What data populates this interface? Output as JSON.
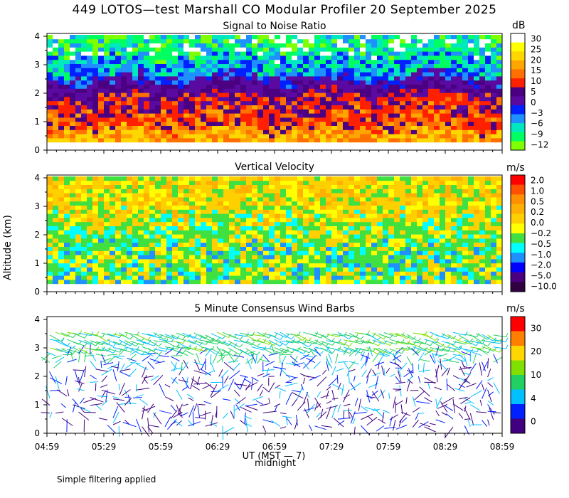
{
  "title": "449 LOTOS—test Marshall CO Modular Profiler 20 September 2025",
  "y_axis_label": "Altitude (km)",
  "x_axis_label": "UT (MST — 7)",
  "midnight_label": "midnight",
  "footnote": "Simple filtering applied",
  "chart_data": [
    {
      "type": "heatmap",
      "title": "Signal to Noise Ratio",
      "unit": "dB",
      "xlabel": "UT (MST — 7)",
      "ylabel": "Altitude (km)",
      "x_ticks": [
        "04:59",
        "05:29",
        "05:59",
        "06:29",
        "06:59",
        "07:29",
        "07:59",
        "08:29",
        "08:59"
      ],
      "y_ticks": [
        "0",
        "1",
        "2",
        "3",
        "4"
      ],
      "ylim": [
        0,
        4.1
      ],
      "colorbar": {
        "labels": [
          "30",
          "25",
          "20",
          "15",
          "10",
          "5",
          "0",
          "−3",
          "−6",
          "−9",
          "−12"
        ],
        "colors": [
          "#ffffff",
          "#ffff00",
          "#ffd700",
          "#ffa500",
          "#ff7000",
          "#ff2000",
          "#4b0082",
          "#5a0aa0",
          "#0020ff",
          "#1e90ff",
          "#00e8c0",
          "#00ff60",
          "#80ff00"
        ]
      },
      "description": "SNR high (10–30 dB) below about 2.2 km, dropping to 0–5 dB near 2.2 km and -3 to -12 dB above 2.5 km"
    },
    {
      "type": "heatmap",
      "title": "Vertical Velocity",
      "unit": "m/s",
      "x_ticks": [
        "04:59",
        "05:29",
        "05:59",
        "06:29",
        "06:59",
        "07:29",
        "07:59",
        "08:29",
        "08:59"
      ],
      "y_ticks": [
        "0",
        "1",
        "2",
        "3",
        "4"
      ],
      "ylim": [
        0,
        4.1
      ],
      "colorbar": {
        "labels": [
          "2.0",
          "1.0",
          "0.5",
          "0.2",
          "0.0",
          "−0.2",
          "−0.5",
          "−1.0",
          "−2.0",
          "−5.0",
          "−10.0"
        ],
        "colors": [
          "#ff0000",
          "#ff5000",
          "#ff9000",
          "#ffb000",
          "#ffd000",
          "#ffff00",
          "#40e040",
          "#00ffff",
          "#1e90ff",
          "#0000ff",
          "#4b0082",
          "#300040"
        ]
      },
      "description": "Vertical velocity mostly 0.0 to 0.5 m/s above 2.5 km, alternating -0.2 to -0.5 m/s below"
    },
    {
      "type": "scatter",
      "title": "5 Minute Consensus Wind Barbs",
      "unit": "m/s",
      "x_ticks": [
        "04:59",
        "05:29",
        "05:59",
        "06:29",
        "06:59",
        "07:29",
        "07:59",
        "08:29",
        "08:59"
      ],
      "y_ticks": [
        "0",
        "1",
        "2",
        "3",
        "4"
      ],
      "ylim": [
        0,
        4.1
      ],
      "colorbar": {
        "labels": [
          "30",
          "20",
          "10",
          "4",
          "0"
        ],
        "colors": [
          "#ff0000",
          "#ff8000",
          "#ffd700",
          "#80e000",
          "#20d060",
          "#00c0ff",
          "#0020ff",
          "#400080"
        ]
      },
      "description": "Winds 5–15 m/s (green) above 2.8 km, light and variable (0–4 m/s, blue/purple) below 2.5 km"
    }
  ]
}
